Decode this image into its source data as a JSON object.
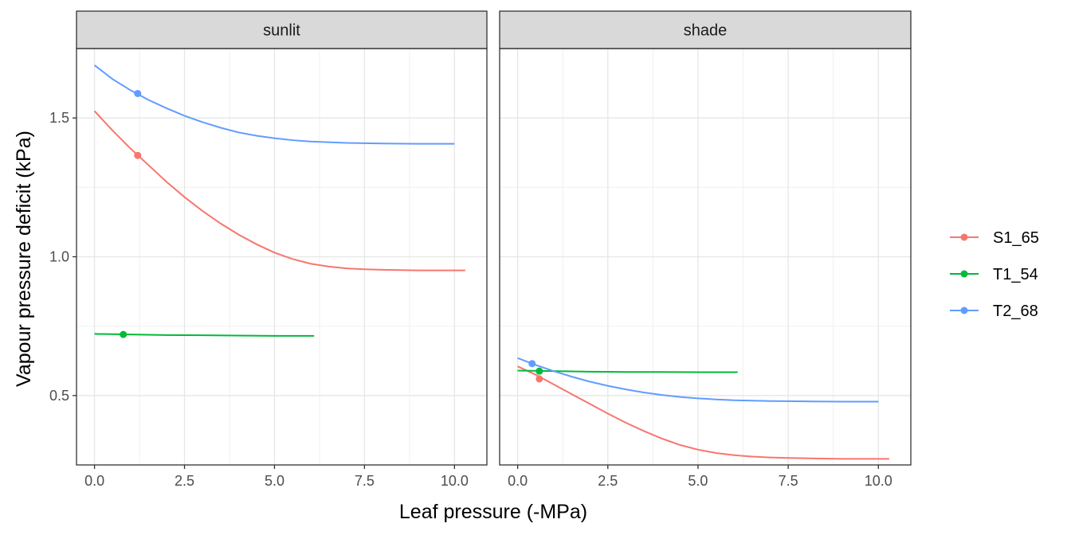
{
  "chart_data": {
    "type": "line",
    "xlabel": "Leaf pressure (-MPa)",
    "ylabel": "Vapour pressure deficit (kPa)",
    "xlim": [
      -0.5,
      10.9
    ],
    "ylim": [
      0.25,
      1.75
    ],
    "xticks": [
      0.0,
      2.5,
      5.0,
      7.5,
      10.0
    ],
    "xtick_labels": [
      "0.0",
      "2.5",
      "5.0",
      "7.5",
      "10.0"
    ],
    "yticks": [
      0.5,
      1.0,
      1.5
    ],
    "ytick_labels": [
      "0.5",
      "1.0",
      "1.5"
    ],
    "grid": true,
    "legend_position": "right",
    "legend": [
      {
        "name": "S1_65",
        "color": "#F8766D"
      },
      {
        "name": "T1_54",
        "color": "#00BA38"
      },
      {
        "name": "T2_68",
        "color": "#619CFF"
      }
    ],
    "panels": [
      {
        "title": "sunlit",
        "series": [
          {
            "name": "S1_65",
            "color": "#F8766D",
            "x": [
              0.0,
              0.5,
              1.0,
              1.5,
              2.0,
              2.5,
              3.0,
              3.5,
              4.0,
              4.5,
              5.0,
              5.5,
              6.0,
              6.5,
              7.0,
              7.5,
              8.0,
              8.5,
              9.0,
              9.5,
              10.0,
              10.3
            ],
            "y": [
              1.525,
              1.455,
              1.39,
              1.33,
              1.27,
              1.215,
              1.165,
              1.12,
              1.08,
              1.045,
              1.015,
              0.992,
              0.975,
              0.965,
              0.958,
              0.955,
              0.953,
              0.952,
              0.951,
              0.951,
              0.951,
              0.951
            ],
            "point": {
              "x": 1.2,
              "y": 1.365
            }
          },
          {
            "name": "T1_54",
            "color": "#00BA38",
            "x": [
              0.0,
              1.0,
              2.0,
              3.0,
              4.0,
              5.0,
              6.1
            ],
            "y": [
              0.722,
              0.72,
              0.718,
              0.717,
              0.716,
              0.715,
              0.715
            ],
            "point": {
              "x": 0.8,
              "y": 0.72
            }
          },
          {
            "name": "T2_68",
            "color": "#619CFF",
            "x": [
              0.0,
              0.5,
              1.0,
              1.5,
              2.0,
              2.5,
              3.0,
              3.5,
              4.0,
              4.5,
              5.0,
              5.5,
              6.0,
              7.0,
              8.0,
              9.0,
              10.0
            ],
            "y": [
              1.69,
              1.64,
              1.6,
              1.565,
              1.535,
              1.508,
              1.485,
              1.465,
              1.448,
              1.436,
              1.427,
              1.42,
              1.415,
              1.41,
              1.408,
              1.407,
              1.407
            ],
            "point": {
              "x": 1.2,
              "y": 1.588
            }
          }
        ]
      },
      {
        "title": "shade",
        "series": [
          {
            "name": "S1_65",
            "color": "#F8766D",
            "x": [
              0.0,
              0.5,
              1.0,
              1.5,
              2.0,
              2.5,
              3.0,
              3.5,
              4.0,
              4.5,
              5.0,
              5.5,
              6.0,
              6.5,
              7.0,
              7.5,
              8.0,
              8.5,
              9.0,
              9.5,
              10.0,
              10.3
            ],
            "y": [
              0.605,
              0.575,
              0.54,
              0.505,
              0.47,
              0.435,
              0.402,
              0.372,
              0.345,
              0.322,
              0.305,
              0.293,
              0.285,
              0.28,
              0.277,
              0.275,
              0.274,
              0.273,
              0.272,
              0.272,
              0.272,
              0.272
            ],
            "point": {
              "x": 0.6,
              "y": 0.56
            }
          },
          {
            "name": "T1_54",
            "color": "#00BA38",
            "x": [
              0.0,
              1.0,
              2.0,
              3.0,
              4.0,
              5.0,
              6.1
            ],
            "y": [
              0.59,
              0.588,
              0.586,
              0.585,
              0.585,
              0.584,
              0.584
            ],
            "point": {
              "x": 0.6,
              "y": 0.588
            }
          },
          {
            "name": "T2_68",
            "color": "#619CFF",
            "x": [
              0.0,
              0.5,
              1.0,
              1.5,
              2.0,
              2.5,
              3.0,
              3.5,
              4.0,
              4.5,
              5.0,
              5.5,
              6.0,
              7.0,
              8.0,
              9.0,
              10.0
            ],
            "y": [
              0.635,
              0.61,
              0.588,
              0.568,
              0.55,
              0.535,
              0.522,
              0.511,
              0.502,
              0.495,
              0.49,
              0.486,
              0.483,
              0.48,
              0.479,
              0.478,
              0.478
            ],
            "point": {
              "x": 0.4,
              "y": 0.615
            }
          }
        ]
      }
    ]
  }
}
